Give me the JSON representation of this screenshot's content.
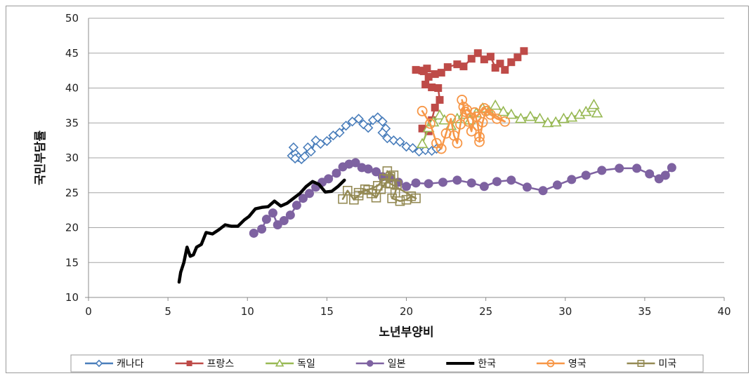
{
  "chart_data": {
    "type": "line",
    "title": "",
    "xlabel": "노년부양비",
    "ylabel": "국민부담률",
    "xlim": [
      0,
      40
    ],
    "ylim": [
      10,
      50
    ],
    "xticks": [
      0,
      5,
      10,
      15,
      20,
      25,
      30,
      35,
      40
    ],
    "yticks": [
      10,
      15,
      20,
      25,
      30,
      35,
      40,
      45,
      50
    ],
    "grid": "horizontal",
    "legend_position": "bottom",
    "series": [
      {
        "name": "캐나다",
        "color": "#4a7ebb",
        "marker": "diamond",
        "points": [
          [
            12.8,
            30.3
          ],
          [
            13.0,
            30.6
          ],
          [
            12.9,
            31.5
          ],
          [
            13.2,
            30.1
          ],
          [
            13.4,
            29.8
          ],
          [
            13.0,
            29.9
          ],
          [
            13.6,
            30.2
          ],
          [
            13.8,
            31.5
          ],
          [
            14.0,
            30.9
          ],
          [
            14.3,
            32.5
          ],
          [
            14.6,
            32.0
          ],
          [
            15.0,
            32.4
          ],
          [
            15.4,
            33.2
          ],
          [
            15.8,
            33.6
          ],
          [
            16.2,
            34.6
          ],
          [
            16.6,
            35.2
          ],
          [
            17.0,
            35.6
          ],
          [
            17.3,
            34.8
          ],
          [
            17.6,
            34.3
          ],
          [
            17.9,
            35.4
          ],
          [
            18.2,
            35.8
          ],
          [
            18.5,
            35.2
          ],
          [
            18.7,
            34.2
          ],
          [
            18.5,
            33.6
          ],
          [
            18.8,
            32.8
          ],
          [
            19.2,
            32.5
          ],
          [
            19.6,
            32.3
          ],
          [
            20.0,
            31.6
          ],
          [
            20.4,
            31.4
          ],
          [
            20.8,
            30.9
          ],
          [
            21.2,
            31.1
          ],
          [
            21.6,
            31.0
          ],
          [
            21.9,
            31.3
          ]
        ]
      },
      {
        "name": "프랑스",
        "color": "#be4b48",
        "marker": "square",
        "points": [
          [
            21.0,
            34.2
          ],
          [
            21.4,
            33.8
          ],
          [
            21.6,
            35.4
          ],
          [
            21.8,
            37.2
          ],
          [
            22.1,
            38.3
          ],
          [
            22.0,
            40.0
          ],
          [
            21.6,
            40.1
          ],
          [
            21.2,
            40.5
          ],
          [
            21.4,
            41.6
          ],
          [
            21.0,
            42.5
          ],
          [
            20.6,
            42.6
          ],
          [
            21.1,
            42.4
          ],
          [
            21.3,
            42.8
          ],
          [
            21.8,
            42.0
          ],
          [
            22.2,
            42.2
          ],
          [
            22.6,
            43.0
          ],
          [
            23.2,
            43.4
          ],
          [
            23.6,
            43.1
          ],
          [
            24.1,
            44.2
          ],
          [
            24.5,
            45.0
          ],
          [
            24.9,
            44.1
          ],
          [
            25.3,
            44.5
          ],
          [
            25.6,
            42.9
          ],
          [
            25.9,
            43.5
          ],
          [
            26.2,
            42.6
          ],
          [
            26.6,
            43.7
          ],
          [
            27.0,
            44.4
          ],
          [
            27.4,
            45.3
          ]
        ]
      },
      {
        "name": "독일",
        "color": "#98b954",
        "marker": "triangle",
        "points": [
          [
            21.0,
            32.0
          ],
          [
            21.4,
            34.3
          ],
          [
            21.7,
            35.1
          ],
          [
            22.1,
            36.1
          ],
          [
            22.4,
            35.4
          ],
          [
            22.8,
            34.6
          ],
          [
            23.2,
            35.6
          ],
          [
            23.6,
            36.2
          ],
          [
            24.0,
            35.4
          ],
          [
            24.4,
            36.4
          ],
          [
            24.8,
            37.1
          ],
          [
            25.2,
            36.7
          ],
          [
            25.6,
            37.5
          ],
          [
            26.1,
            36.6
          ],
          [
            26.6,
            36.2
          ],
          [
            27.2,
            35.6
          ],
          [
            27.8,
            35.9
          ],
          [
            28.4,
            35.6
          ],
          [
            28.9,
            35.0
          ],
          [
            29.4,
            35.1
          ],
          [
            29.9,
            35.6
          ],
          [
            30.4,
            35.8
          ],
          [
            30.9,
            36.2
          ],
          [
            31.3,
            36.6
          ],
          [
            31.7,
            37.2
          ],
          [
            32.0,
            36.4
          ],
          [
            31.8,
            37.6
          ]
        ]
      },
      {
        "name": "일본",
        "color": "#7e62a1",
        "marker": "circle",
        "points": [
          [
            10.4,
            19.2
          ],
          [
            10.9,
            19.8
          ],
          [
            11.2,
            21.2
          ],
          [
            11.6,
            22.1
          ],
          [
            11.9,
            20.4
          ],
          [
            12.3,
            21.0
          ],
          [
            12.7,
            21.8
          ],
          [
            13.1,
            23.2
          ],
          [
            13.5,
            24.2
          ],
          [
            13.9,
            24.9
          ],
          [
            14.3,
            25.8
          ],
          [
            14.7,
            26.5
          ],
          [
            15.1,
            27.0
          ],
          [
            15.6,
            27.8
          ],
          [
            16.0,
            28.7
          ],
          [
            16.4,
            29.1
          ],
          [
            16.8,
            29.3
          ],
          [
            17.2,
            28.6
          ],
          [
            17.6,
            28.4
          ],
          [
            18.1,
            28.0
          ],
          [
            18.5,
            27.3
          ],
          [
            19.0,
            27.1
          ],
          [
            19.5,
            26.5
          ],
          [
            20.0,
            25.9
          ],
          [
            20.6,
            26.4
          ],
          [
            21.4,
            26.3
          ],
          [
            22.3,
            26.5
          ],
          [
            23.2,
            26.8
          ],
          [
            24.1,
            26.4
          ],
          [
            24.9,
            25.9
          ],
          [
            25.7,
            26.6
          ],
          [
            26.6,
            26.8
          ],
          [
            27.6,
            25.8
          ],
          [
            28.6,
            25.3
          ],
          [
            29.5,
            26.1
          ],
          [
            30.4,
            26.9
          ],
          [
            31.3,
            27.5
          ],
          [
            32.3,
            28.2
          ],
          [
            33.4,
            28.5
          ],
          [
            34.5,
            28.5
          ],
          [
            35.3,
            27.7
          ],
          [
            35.9,
            27.0
          ],
          [
            36.3,
            27.5
          ],
          [
            36.7,
            28.6
          ]
        ]
      },
      {
        "name": "한국",
        "color": "#000000",
        "marker": "none",
        "points": [
          [
            5.7,
            12.2
          ],
          [
            5.8,
            13.6
          ],
          [
            6.0,
            15.0
          ],
          [
            6.2,
            17.2
          ],
          [
            6.4,
            15.9
          ],
          [
            6.6,
            16.1
          ],
          [
            6.8,
            17.2
          ],
          [
            7.1,
            17.6
          ],
          [
            7.4,
            19.3
          ],
          [
            7.8,
            19.1
          ],
          [
            8.2,
            19.7
          ],
          [
            8.6,
            20.4
          ],
          [
            9.0,
            20.2
          ],
          [
            9.4,
            20.2
          ],
          [
            9.8,
            21.1
          ],
          [
            10.1,
            21.6
          ],
          [
            10.5,
            22.7
          ],
          [
            10.9,
            22.9
          ],
          [
            11.3,
            23.0
          ],
          [
            11.7,
            23.8
          ],
          [
            12.1,
            23.1
          ],
          [
            12.5,
            23.5
          ],
          [
            12.9,
            24.2
          ],
          [
            13.3,
            24.9
          ],
          [
            13.7,
            25.9
          ],
          [
            14.1,
            26.6
          ],
          [
            14.5,
            26.2
          ],
          [
            14.9,
            25.1
          ],
          [
            15.3,
            25.2
          ],
          [
            15.7,
            25.9
          ],
          [
            16.1,
            26.8
          ]
        ]
      },
      {
        "name": "영국",
        "color": "#f79646",
        "marker": "circle-open",
        "points": [
          [
            21.0,
            36.7
          ],
          [
            21.5,
            34.9
          ],
          [
            21.9,
            32.1
          ],
          [
            22.2,
            31.3
          ],
          [
            22.5,
            33.5
          ],
          [
            22.8,
            35.6
          ],
          [
            23.0,
            33.2
          ],
          [
            23.2,
            32.1
          ],
          [
            23.4,
            34.8
          ],
          [
            23.6,
            37.3
          ],
          [
            23.5,
            38.3
          ],
          [
            23.7,
            36.6
          ],
          [
            23.9,
            35.2
          ],
          [
            24.1,
            33.8
          ],
          [
            24.3,
            36.5
          ],
          [
            24.5,
            34.6
          ],
          [
            24.6,
            33.0
          ],
          [
            24.6,
            32.3
          ],
          [
            24.8,
            35.1
          ],
          [
            25.0,
            36.7
          ],
          [
            25.3,
            36.2
          ],
          [
            25.7,
            35.6
          ],
          [
            26.2,
            35.2
          ],
          [
            24.9,
            37.1
          ],
          [
            24.4,
            35.9
          ],
          [
            23.8,
            36.9
          ]
        ]
      },
      {
        "name": "미국",
        "color": "#948a54",
        "marker": "square-open",
        "points": [
          [
            16.0,
            24.1
          ],
          [
            16.3,
            25.3
          ],
          [
            16.7,
            24.0
          ],
          [
            17.0,
            24.6
          ],
          [
            17.4,
            25.5
          ],
          [
            17.8,
            24.9
          ],
          [
            18.1,
            24.3
          ],
          [
            18.4,
            25.5
          ],
          [
            18.7,
            26.4
          ],
          [
            19.0,
            27.3
          ],
          [
            18.8,
            28.1
          ],
          [
            19.2,
            27.5
          ],
          [
            19.4,
            26.1
          ],
          [
            19.3,
            25.0
          ],
          [
            19.1,
            24.2
          ],
          [
            19.6,
            23.8
          ],
          [
            20.0,
            24.0
          ],
          [
            20.3,
            24.5
          ],
          [
            20.6,
            24.2
          ],
          [
            19.0,
            26.3
          ],
          [
            18.6,
            27.0
          ],
          [
            18.2,
            26.0
          ],
          [
            17.6,
            25.4
          ],
          [
            17.0,
            25.0
          ]
        ]
      }
    ]
  }
}
